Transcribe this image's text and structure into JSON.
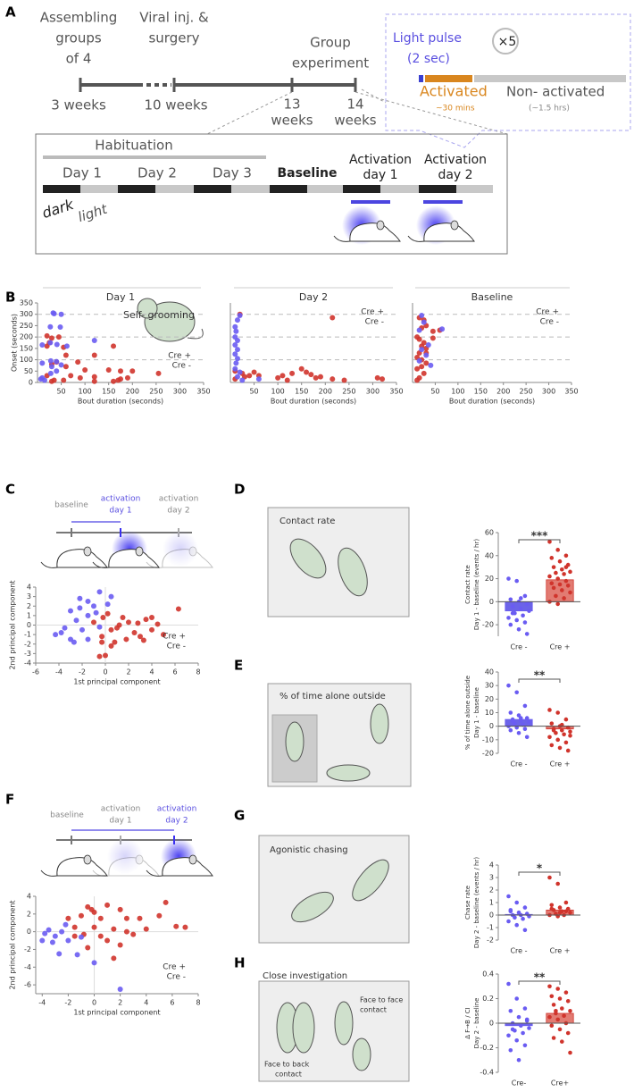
{
  "panel_labels": [
    "A",
    "B",
    "C",
    "D",
    "E",
    "F",
    "G",
    "H"
  ],
  "timeline": {
    "above": [
      [
        "Assembling",
        "groups",
        "of 4"
      ],
      [
        "Viral inj. &",
        "surgery"
      ],
      [
        "Group",
        "experiment"
      ]
    ],
    "below": [
      [
        "3 weeks"
      ],
      [
        "10 weeks"
      ],
      [
        "13",
        "weeks"
      ],
      [
        "14",
        "weeks"
      ]
    ],
    "light_pulse": [
      "Light pulse",
      "(2 sec)"
    ],
    "repeat": "×5",
    "activated": "Activated",
    "activated_time": "~30 mins",
    "non_activated": "Non- activated",
    "non_activated_time": "(~1.5 hrs)",
    "habituation": "Habituation",
    "days": [
      [
        "Day 1"
      ],
      [
        "Day 2"
      ],
      [
        "Day 3"
      ],
      [
        "Baseline"
      ],
      [
        "Activation",
        "day 1"
      ],
      [
        "Activation",
        "day 2"
      ]
    ],
    "dark": "dark",
    "light": "light"
  },
  "schematics": {
    "c": [
      [
        "baseline"
      ],
      [
        "activation",
        "day 1"
      ],
      [
        "activation",
        "day 2"
      ]
    ],
    "f": [
      [
        "baseline"
      ],
      [
        "activation",
        "day 1"
      ],
      [
        "activation",
        "day 2"
      ]
    ]
  },
  "illustrations": {
    "d": "Contact rate",
    "e": "% of time alone outside",
    "g": "Agonistic chasing",
    "h": "Close investigation",
    "h_face": [
      "Face to face",
      "contact"
    ],
    "h_back": [
      "Face to back",
      "contact"
    ]
  },
  "chart_data": [
    {
      "type": "scatter",
      "title": "Day 1",
      "xlabel": "Bout duration (seconds)",
      "ylabel": "Onset (seconds)",
      "annotation": "Self- grooming",
      "xlim": [
        0,
        350
      ],
      "ylim": [
        0,
        350
      ],
      "xticks": [
        50,
        100,
        150,
        200,
        250,
        300,
        350
      ],
      "yticks": [
        0,
        50,
        100,
        150,
        200,
        250,
        300,
        350
      ],
      "hlines": [
        100,
        200,
        300
      ],
      "legend": "lower right",
      "series": [
        {
          "name": "Cre +",
          "color": "#d0342c",
          "x": [
            20,
            30,
            45,
            25,
            20,
            55,
            160,
            60,
            120,
            40,
            85,
            30,
            60,
            100,
            150,
            175,
            200,
            20,
            70,
            90,
            120,
            175,
            190,
            35,
            30,
            55,
            160,
            170,
            120,
            255
          ],
          "values": [
            205,
            195,
            200,
            175,
            160,
            155,
            160,
            120,
            120,
            90,
            90,
            80,
            70,
            55,
            55,
            50,
            50,
            30,
            30,
            20,
            25,
            15,
            20,
            10,
            5,
            10,
            5,
            10,
            5,
            40
          ]
        },
        {
          "name": "Cre -",
          "color": "#6a5cf2",
          "x": [
            33,
            35,
            50,
            27,
            48,
            120,
            27,
            41,
            10,
            62,
            28,
            40,
            10,
            50,
            30,
            40,
            28,
            10,
            7,
            15
          ],
          "values": [
            306,
            303,
            300,
            245,
            244,
            185,
            175,
            167,
            165,
            160,
            95,
            92,
            85,
            77,
            70,
            50,
            40,
            20,
            15,
            10
          ]
        }
      ]
    },
    {
      "type": "scatter",
      "title": "Day 2",
      "xlabel": "Bout duration (seconds)",
      "xlim": [
        0,
        350
      ],
      "ylim": [
        0,
        350
      ],
      "xticks": [
        50,
        100,
        150,
        200,
        250,
        300,
        350
      ],
      "hlines": [
        100,
        200,
        300
      ],
      "legend": "upper right",
      "series": [
        {
          "name": "Cre +",
          "color": "#d0342c",
          "x": [
            20,
            215,
            10,
            25,
            40,
            30,
            10,
            50,
            100,
            110,
            130,
            150,
            160,
            170,
            180,
            190,
            215,
            240,
            310,
            320,
            60,
            120
          ],
          "values": [
            300,
            285,
            50,
            40,
            30,
            25,
            15,
            45,
            20,
            30,
            40,
            60,
            45,
            35,
            20,
            25,
            15,
            10,
            20,
            15,
            30,
            10
          ]
        },
        {
          "name": "Cre -",
          "color": "#6a5cf2",
          "x": [
            20,
            15,
            10,
            12,
            10,
            15,
            10,
            15,
            10,
            15,
            12,
            10,
            20,
            25,
            60,
            15
          ],
          "values": [
            295,
            275,
            245,
            225,
            200,
            185,
            165,
            145,
            125,
            105,
            85,
            60,
            45,
            10,
            15,
            25
          ]
        }
      ]
    },
    {
      "type": "scatter",
      "title": "Baseline",
      "xlabel": "Bout duration (seconds)",
      "xlim": [
        0,
        350
      ],
      "ylim": [
        0,
        350
      ],
      "xticks": [
        50,
        100,
        150,
        200,
        250,
        300,
        350
      ],
      "hlines": [
        100,
        200,
        300
      ],
      "legend": "upper right",
      "series": [
        {
          "name": "Cre +",
          "color": "#d0342c",
          "x": [
            15,
            25,
            30,
            20,
            45,
            10,
            15,
            25,
            20,
            30,
            15,
            10,
            20,
            30,
            20,
            10,
            25,
            15,
            10,
            30,
            60,
            45
          ],
          "values": [
            285,
            275,
            250,
            240,
            225,
            200,
            190,
            175,
            160,
            150,
            130,
            110,
            100,
            85,
            70,
            60,
            40,
            20,
            10,
            130,
            230,
            195
          ]
        },
        {
          "name": "Cre -",
          "color": "#6a5cf2",
          "x": [
            20,
            25,
            15,
            35,
            20,
            30,
            15,
            40,
            65
          ],
          "values": [
            295,
            265,
            230,
            165,
            145,
            120,
            95,
            75,
            235
          ]
        }
      ]
    },
    {
      "type": "scatter",
      "xlabel": "1st principal component",
      "ylabel": "2nd principal component",
      "xlim": [
        -6,
        8
      ],
      "ylim": [
        -4,
        4
      ],
      "xticks": [
        -6,
        -4,
        -2,
        0,
        2,
        4,
        6,
        8
      ],
      "yticks": [
        -4,
        -3,
        -2,
        -1,
        0,
        1,
        2,
        3,
        4
      ],
      "zero_lines": true,
      "legend": "lower right",
      "series": [
        {
          "name": "Cre +",
          "color": "#d0342c",
          "x": [
            6.3,
            4,
            3.5,
            2,
            1.5,
            1,
            0.5,
            2.5,
            3,
            4,
            1.8,
            0.8,
            -0.3,
            0.5,
            -0.5,
            0,
            -0.3,
            1.2,
            2.8,
            3.3,
            5,
            -0.2,
            0.2,
            -1,
            4.5
          ],
          "values": [
            1.7,
            0.8,
            0.6,
            0.3,
            0.8,
            -0.3,
            -0.5,
            -0.8,
            -1.2,
            -0.5,
            -1.5,
            -1.8,
            -1.2,
            -2.2,
            -3.3,
            -3.2,
            -1.8,
            0,
            0.2,
            -1.6,
            -1,
            0.8,
            1.2,
            0.3,
            0.1
          ]
        },
        {
          "name": "Cre -",
          "color": "#6a5cf2",
          "x": [
            -0.5,
            0.5,
            -1.5,
            -2.2,
            -1,
            -3,
            -2.2,
            -0.8,
            -1.5,
            -2.5,
            -0.5,
            -4.3,
            -3.8,
            -3,
            -2.7,
            -3.5,
            -1.5,
            -2,
            0.2
          ],
          "values": [
            3.5,
            3,
            2.5,
            2.8,
            2,
            1.5,
            1.8,
            1.3,
            1,
            0.5,
            -0.2,
            -1,
            -0.8,
            -1.5,
            -1.8,
            -0.3,
            -1.5,
            -0.5,
            2.2
          ]
        }
      ]
    },
    {
      "type": "bar",
      "categories": [
        "Cre -",
        "Cre +"
      ],
      "values": [
        -8,
        19
      ],
      "colors": [
        "#6b63e8",
        "#e27b72"
      ],
      "point_colors": [
        "#6a5cf2",
        "#d0342c"
      ],
      "points": [
        [
          20,
          18,
          5,
          2,
          0,
          -2,
          -4,
          -6,
          -8,
          -10,
          -12,
          -14,
          -16,
          -18,
          -20,
          -24,
          -28,
          -10,
          3
        ],
        [
          52,
          45,
          40,
          38,
          35,
          32,
          30,
          28,
          26,
          25,
          24,
          22,
          20,
          18,
          16,
          15,
          14,
          12,
          10,
          8,
          5,
          3,
          0,
          -2,
          30
        ]
      ],
      "ylim": [
        -30,
        60
      ],
      "yticks": [
        -20,
        0,
        20,
        40,
        60
      ],
      "ylabel": [
        "Contact rate",
        "Day 1 - baseline (events / hr)"
      ],
      "significance": "***"
    },
    {
      "type": "bar",
      "categories": [
        "Cre -",
        "Cre +"
      ],
      "values": [
        5,
        -2
      ],
      "colors": [
        "#6b63e8",
        "#e27b72"
      ],
      "point_colors": [
        "#6a5cf2",
        "#d0342c"
      ],
      "points": [
        [
          30,
          25,
          15,
          10,
          8,
          6,
          5,
          4,
          3,
          2,
          1,
          0,
          -1,
          -2,
          -3,
          -5,
          -8,
          4,
          6
        ],
        [
          12,
          10,
          5,
          2,
          0,
          -1,
          -2,
          -3,
          -4,
          -5,
          -6,
          -8,
          -10,
          -12,
          -14,
          -16,
          -18,
          -3,
          1,
          -7
        ]
      ],
      "ylim": [
        -20,
        40
      ],
      "yticks": [
        -20,
        -10,
        0,
        10,
        20,
        30,
        40
      ],
      "ylabel": [
        "% of time alone outside",
        "Day 1 - baseline"
      ],
      "significance": "**"
    },
    {
      "type": "scatter",
      "xlabel": "1st principal component",
      "ylabel": "2nd principal component",
      "xlim": [
        -4.5,
        8
      ],
      "ylim": [
        -7,
        4
      ],
      "xticks": [
        -4,
        -2,
        0,
        2,
        4,
        6,
        8
      ],
      "yticks": [
        -6,
        -4,
        -2,
        0,
        2,
        4
      ],
      "zero_lines": true,
      "legend": "lower right",
      "series": [
        {
          "name": "Cre +",
          "color": "#d0342c",
          "x": [
            1,
            2,
            0,
            -0.5,
            0.5,
            -1,
            -2,
            -1.5,
            0,
            1.5,
            2.5,
            3,
            5.5,
            7,
            5,
            3.5,
            0.5,
            1,
            2,
            -0.8,
            4,
            6.3,
            -0.5,
            1.5,
            -0.2,
            -1.5,
            2.5
          ],
          "values": [
            3,
            2.5,
            2.2,
            2.8,
            1.5,
            1.8,
            1.5,
            0.5,
            0.5,
            0.3,
            0,
            -0.3,
            3.3,
            0.5,
            1.8,
            1.5,
            -0.5,
            -1,
            -1.5,
            -0.3,
            0.3,
            0.6,
            -1.8,
            -3,
            2.5,
            -0.5,
            1.5
          ]
        },
        {
          "name": "Cre -",
          "color": "#6a5cf2",
          "x": [
            -3.5,
            -3,
            -4,
            -3.2,
            -2.5,
            -2.7,
            -2,
            -1,
            -1.3,
            -3.8,
            0,
            2,
            -2.2
          ],
          "values": [
            0.2,
            -0.5,
            -1,
            -1.2,
            0,
            -2.5,
            -1,
            -0.6,
            -2.6,
            -0.2,
            -3.5,
            -6.5,
            0.8
          ]
        }
      ]
    },
    {
      "type": "bar",
      "categories": [
        "Cre -",
        "Cre +"
      ],
      "values": [
        0.05,
        0.4
      ],
      "colors": [
        "#6b63e8",
        "#e27b72"
      ],
      "point_colors": [
        "#6a5cf2",
        "#d0342c"
      ],
      "points": [
        [
          1.5,
          1.0,
          0.6,
          0.3,
          0.2,
          0.1,
          0,
          0,
          -0.1,
          -0.2,
          -0.3,
          -0.5,
          -0.8,
          -1.2,
          0.4
        ],
        [
          3.0,
          2.5,
          1.0,
          0.8,
          0.6,
          0.5,
          0.4,
          0.3,
          0.2,
          0.1,
          0,
          0,
          -0.1,
          0.3,
          0.5,
          0.2
        ]
      ],
      "ylim": [
        -2,
        4
      ],
      "yticks": [
        -2,
        -1,
        0,
        1,
        2,
        3,
        4
      ],
      "ylabel": [
        "Chase rate",
        "Day 2 - baseline (events / hr)"
      ],
      "significance": "*"
    },
    {
      "type": "bar",
      "categories": [
        "Cre-",
        "Cre+"
      ],
      "values": [
        -0.02,
        0.08
      ],
      "colors": [
        "#6b63e8",
        "#e27b72"
      ],
      "point_colors": [
        "#6a5cf2",
        "#d0342c"
      ],
      "points": [
        [
          0.32,
          0.2,
          0.12,
          0.1,
          0.05,
          0.02,
          0,
          -0.02,
          -0.04,
          -0.06,
          -0.08,
          -0.1,
          -0.14,
          -0.18,
          -0.22,
          -0.3,
          0.03,
          -0.05
        ],
        [
          0.3,
          0.28,
          0.25,
          0.22,
          0.2,
          0.18,
          0.15,
          0.12,
          0.1,
          0.08,
          0.06,
          0.05,
          0.03,
          0,
          -0.02,
          -0.05,
          -0.08,
          -0.12,
          -0.15,
          -0.24,
          0.1
        ]
      ],
      "ylim": [
        -0.4,
        0.4
      ],
      "yticks": [
        -0.4,
        -0.2,
        0,
        0.2,
        0.4
      ],
      "ylabel": [
        "Δ F→B / CI",
        "Day 2 - baseline"
      ],
      "significance": "**"
    }
  ]
}
